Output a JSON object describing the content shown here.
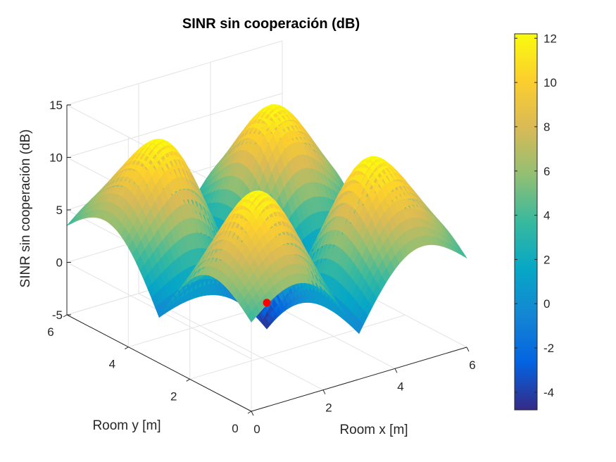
{
  "chart_data": {
    "type": "surface",
    "title": "SINR sin cooperación (dB)",
    "xlabel": "Room x [m]",
    "ylabel": "Room y [m]",
    "zlabel": "SINR sin cooperación (dB)",
    "xlim": [
      0,
      6
    ],
    "ylim": [
      0,
      6
    ],
    "zlim": [
      -5,
      15
    ],
    "x_ticks": [
      "0",
      "2",
      "4",
      "6"
    ],
    "y_ticks": [
      "0",
      "2",
      "4",
      "6"
    ],
    "z_ticks": [
      "-5",
      "0",
      "5",
      "10",
      "15"
    ],
    "colormap": "parula",
    "clim": [
      -4.8,
      12.2
    ],
    "colorbar_ticks": [
      "-4",
      "-2",
      "0",
      "2",
      "4",
      "6",
      "8",
      "10",
      "12"
    ],
    "transmitters": [
      {
        "x": 1.5,
        "y": 1.5
      },
      {
        "x": 4.5,
        "y": 1.5
      },
      {
        "x": 1.5,
        "y": 4.5
      },
      {
        "x": 4.5,
        "y": 4.5
      }
    ],
    "peak_sinr_db": 12.2,
    "min_sinr_db": -4.8,
    "marked_point": {
      "x": 3.0,
      "y": 3.0,
      "color": "#ff0000"
    },
    "grid": true
  }
}
